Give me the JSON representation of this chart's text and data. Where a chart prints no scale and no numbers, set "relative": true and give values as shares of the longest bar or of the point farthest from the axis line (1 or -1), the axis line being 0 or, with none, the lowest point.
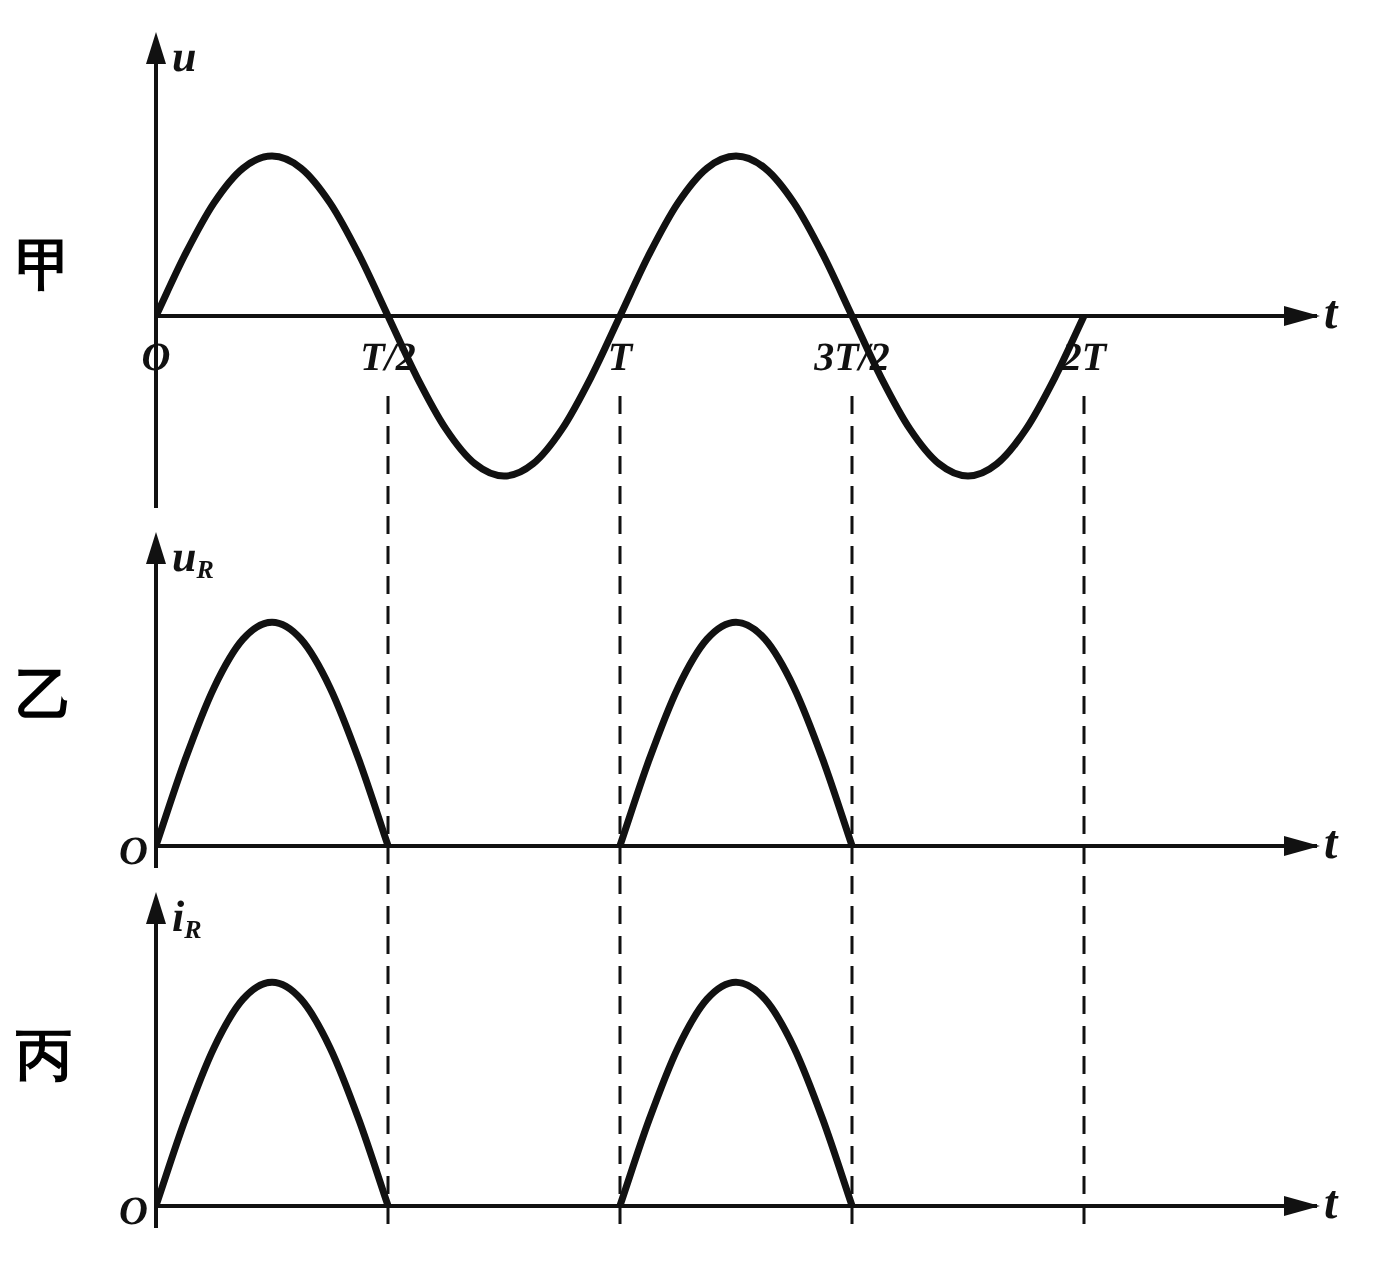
{
  "chart_data": [
    {
      "type": "line",
      "title": "甲",
      "xlabel": "t",
      "ylabel": "u",
      "relative": true,
      "legend": false,
      "marker": "none",
      "line_style": "solid",
      "tick_labels": "x",
      "categories": [
        "O",
        null,
        null,
        null,
        null,
        null,
        null,
        null,
        "T/2",
        null,
        null,
        null,
        null,
        null,
        null,
        null,
        "T",
        null,
        null,
        null,
        null,
        null,
        null,
        null,
        "3T/2",
        null,
        null,
        null,
        null,
        null,
        null,
        null,
        "2T"
      ],
      "series": [
        {
          "color": "#111111",
          "values": [
            0,
            0.383,
            0.707,
            0.924,
            1,
            0.924,
            0.707,
            0.383,
            0,
            -0.383,
            -0.707,
            -0.924,
            -1,
            -0.924,
            -0.707,
            -0.383,
            0,
            0.383,
            0.707,
            0.924,
            1,
            0.924,
            0.707,
            0.383,
            0,
            -0.383,
            -0.707,
            -0.924,
            -1,
            -0.924,
            -0.707,
            -0.383,
            0
          ]
        }
      ],
      "ref_lines": [
        {
          "axis": "x",
          "value": "T/2",
          "line_style": "dashed"
        },
        {
          "axis": "x",
          "value": "T",
          "line_style": "dashed"
        },
        {
          "axis": "x",
          "value": "3T/2",
          "line_style": "dashed"
        },
        {
          "axis": "x",
          "value": "2T",
          "line_style": "dashed"
        }
      ]
    },
    {
      "type": "line",
      "title": "乙",
      "xlabel": "t",
      "ylabel": "u$_{R}$",
      "relative": true,
      "grid": false,
      "legend": false,
      "marker": "none",
      "line_style": "solid",
      "tick_labels": false,
      "annotations": [
        "O"
      ],
      "categories": [
        "O",
        null,
        null,
        null,
        null,
        null,
        null,
        null,
        "T/2",
        null,
        null,
        null,
        null,
        null,
        null,
        null,
        "T",
        null,
        null,
        null,
        null,
        null,
        null,
        null,
        "3T/2",
        null,
        null,
        null,
        null,
        null,
        null,
        null,
        "2T"
      ],
      "ref_lines": [
        {
          "axis": "x",
          "value": "T/2",
          "line_style": "dashed"
        },
        {
          "axis": "x",
          "value": "T",
          "line_style": "dashed"
        },
        {
          "axis": "x",
          "value": "3T/2",
          "line_style": "dashed"
        },
        {
          "axis": "x",
          "value": "2T",
          "line_style": "dashed"
        }
      ],
      "series": [
        {
          "color": "#111111",
          "values": [
            0,
            0.383,
            0.707,
            0.924,
            1,
            0.924,
            0.707,
            0.383,
            0,
            null,
            null,
            null,
            null,
            null,
            null,
            null,
            0,
            0.383,
            0.707,
            0.924,
            1,
            0.924,
            0.707,
            0.383,
            0,
            null,
            null,
            null,
            null,
            null,
            null,
            null,
            null
          ]
        }
      ]
    },
    {
      "type": "line",
      "title": "丙",
      "xlabel": "t",
      "ylabel": "i$_{R}$",
      "relative": true,
      "grid": false,
      "legend": false,
      "marker": "none",
      "line_style": "solid",
      "tick_labels": false,
      "annotations": [
        "O"
      ],
      "categories": [
        "O",
        null,
        null,
        null,
        null,
        null,
        null,
        null,
        "T/2",
        null,
        null,
        null,
        null,
        null,
        null,
        null,
        "T",
        null,
        null,
        null,
        null,
        null,
        null,
        null,
        "3T/2",
        null,
        null,
        null,
        null,
        null,
        null,
        null,
        "2T"
      ],
      "ref_lines": [
        {
          "axis": "x",
          "value": "T/2",
          "line_style": "dashed"
        },
        {
          "axis": "x",
          "value": "T",
          "line_style": "dashed"
        },
        {
          "axis": "x",
          "value": "3T/2",
          "line_style": "dashed"
        },
        {
          "axis": "x",
          "value": "2T",
          "line_style": "dashed"
        }
      ],
      "series": [
        {
          "color": "#111111",
          "values": [
            0,
            0.383,
            0.707,
            0.924,
            1,
            0.924,
            0.707,
            0.383,
            0,
            null,
            null,
            null,
            null,
            null,
            null,
            null,
            0,
            0.383,
            0.707,
            0.924,
            1,
            0.924,
            0.707,
            0.383,
            0,
            null,
            null,
            null,
            null,
            null,
            null,
            null,
            null
          ]
        }
      ]
    }
  ]
}
